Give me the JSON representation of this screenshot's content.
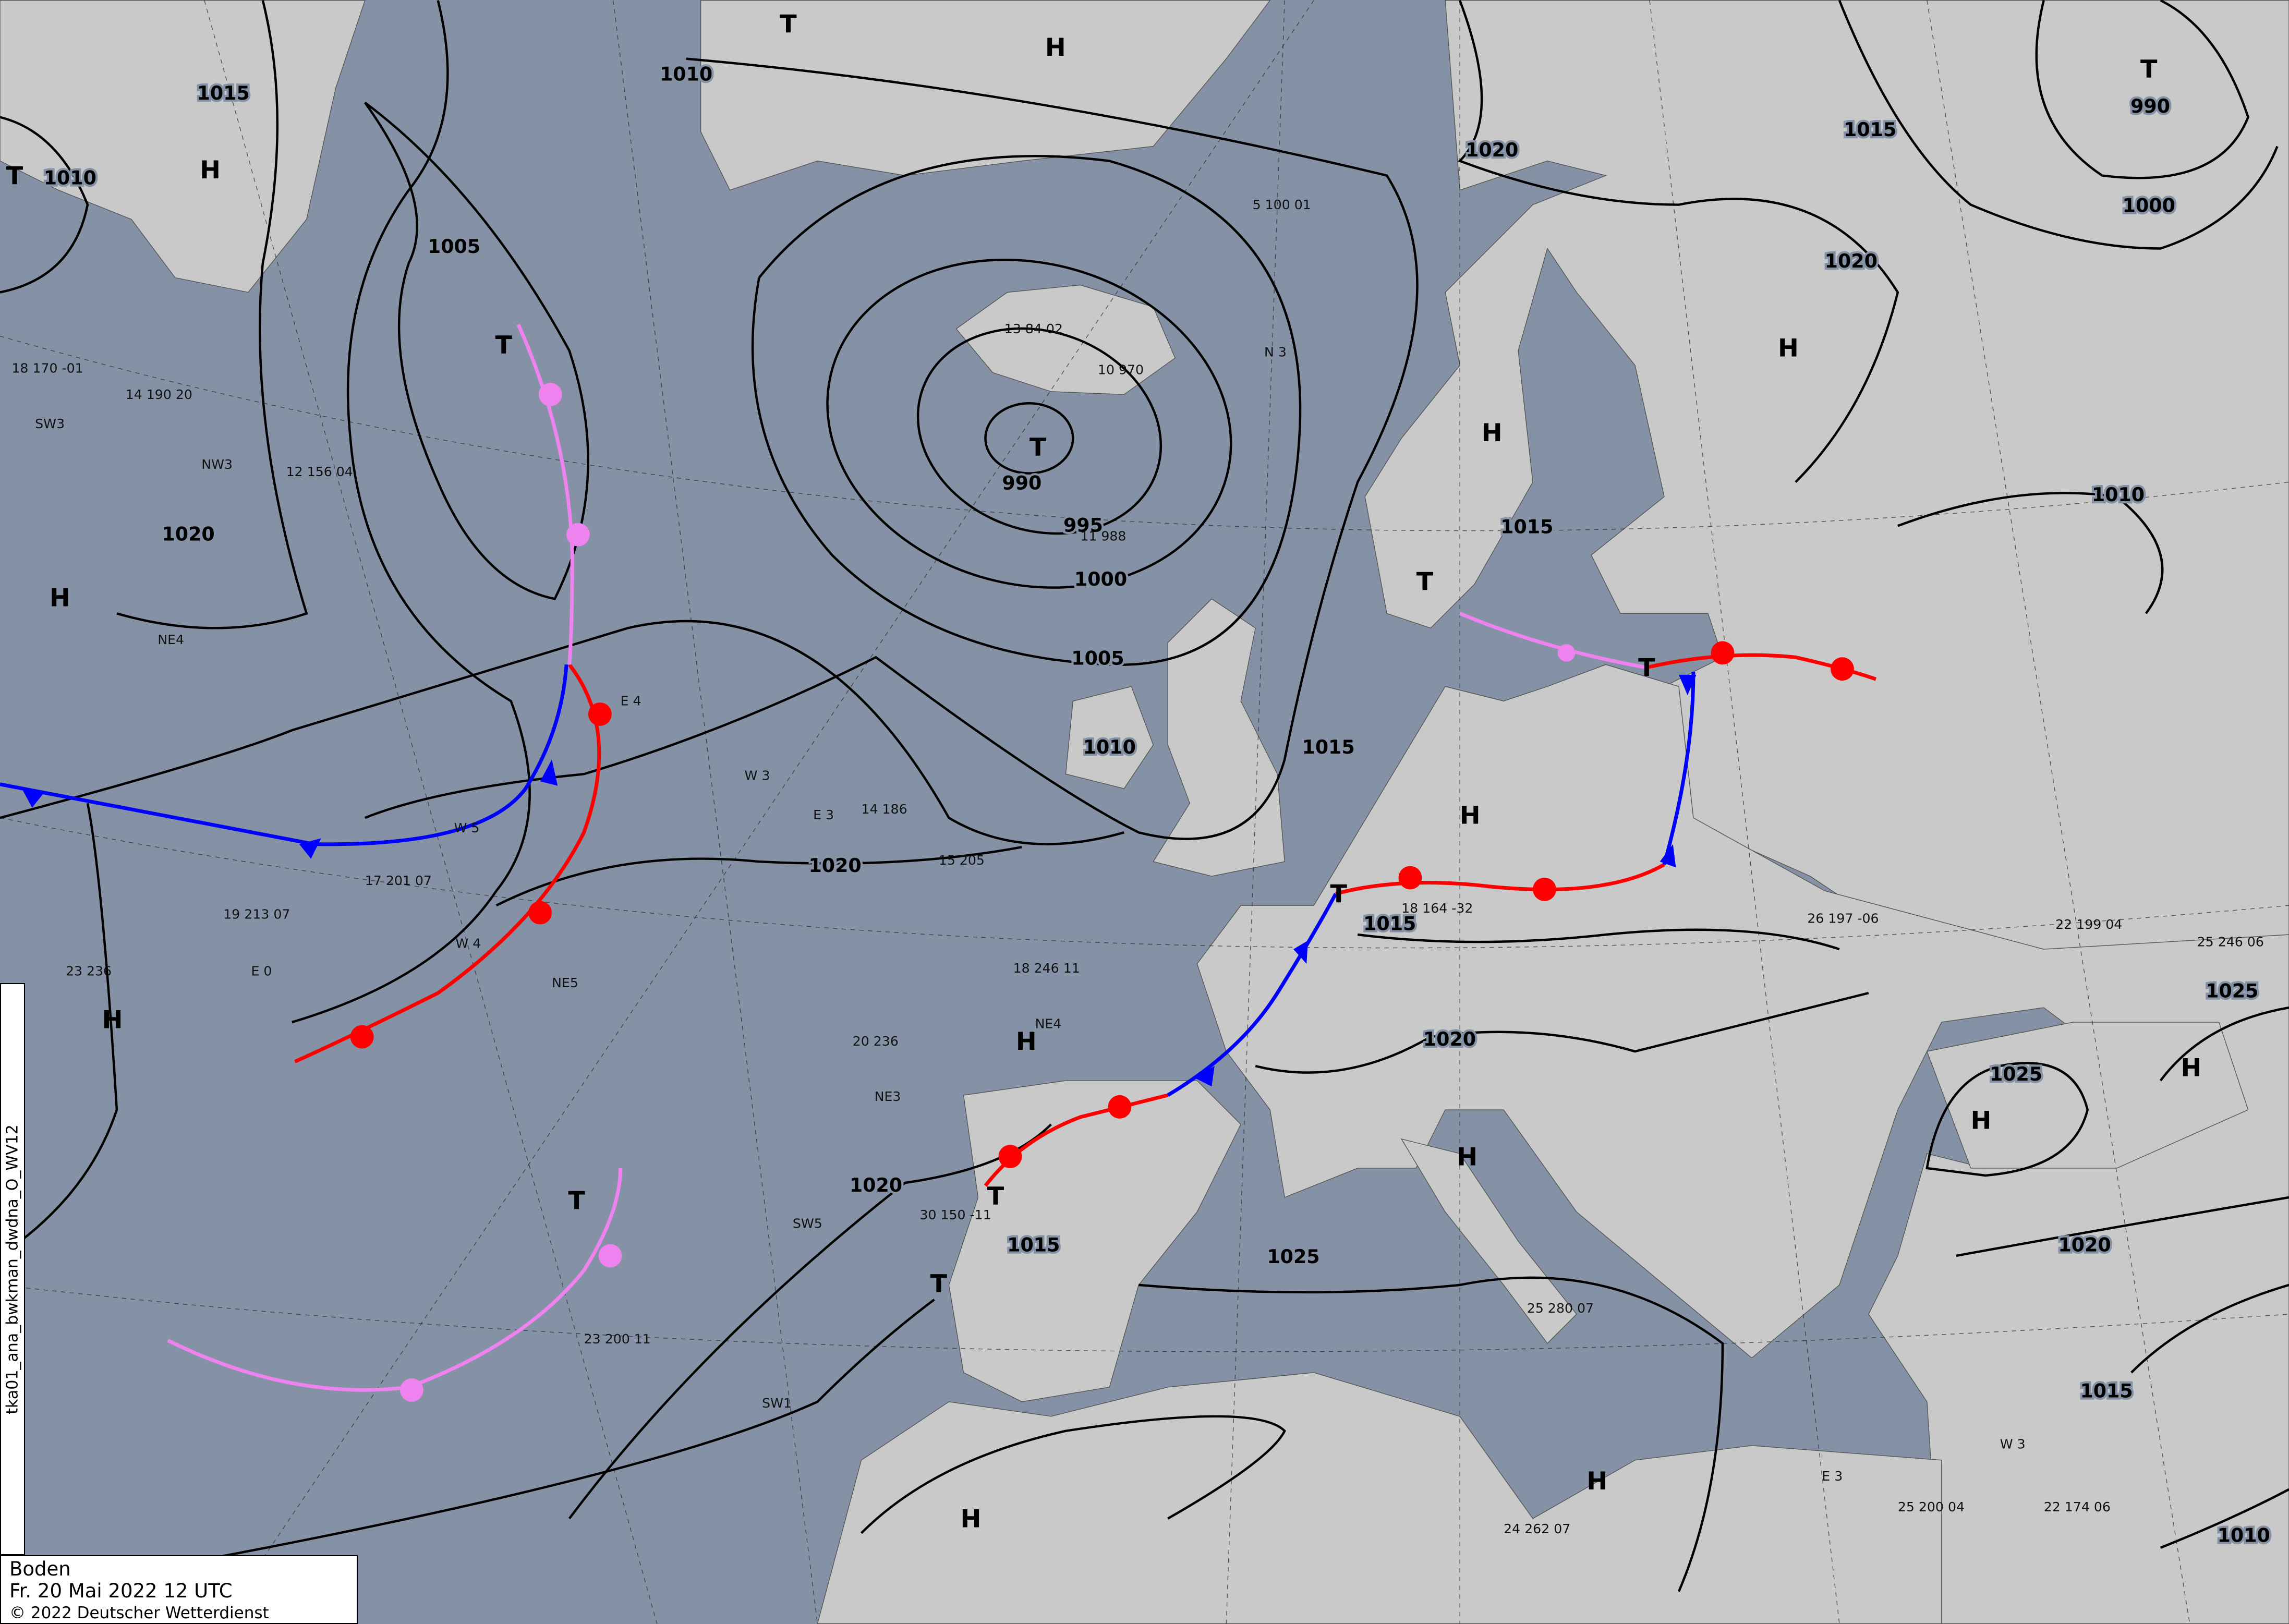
{
  "map": {
    "type": "surface weather analysis",
    "colors": {
      "sea": "#8592a6",
      "land": "#c9c9c9",
      "warm_front": "#ff0000",
      "cold_front": "#0000ff",
      "occlusion": "#ee82ee",
      "isobar": "#000000"
    },
    "isobar_labels": [
      "1015",
      "1010",
      "1005",
      "1020",
      "1010",
      "990",
      "995",
      "1000",
      "1005",
      "1010",
      "1020",
      "1020",
      "1015",
      "1025",
      "1015",
      "1015",
      "1015",
      "1020",
      "1020",
      "1015",
      "1020",
      "1000",
      "990",
      "1010",
      "1025",
      "1025",
      "1020",
      "1015",
      "1010"
    ],
    "pressure_centers": [
      "H",
      "H",
      "H",
      "T",
      "T",
      "H",
      "T",
      "T",
      "T",
      "H",
      "T",
      "T",
      "H",
      "H",
      "T",
      "T",
      "H",
      "H",
      "T",
      "H",
      "H",
      "H",
      "H",
      "T"
    ],
    "stations": [
      "13 84 02",
      "10 970",
      "11 988",
      "5 100 01",
      "14 186",
      "15 205",
      "17 201 07",
      "19 213 07",
      "23 236",
      "14 190 20",
      "12 156 04",
      "18 170 -01",
      "18 246 11",
      "20 236",
      "30 150 -11",
      "23 200 11",
      "25 280 07",
      "24 262 07",
      "18 164 -32",
      "26 197 -06",
      "22 199 04",
      "25 246 06",
      "22 174 06",
      "25 200 04"
    ],
    "wind_labels": [
      "SW3",
      "NW3",
      "NE4",
      "E 4",
      "W 4",
      "W 5",
      "NE5",
      "W 3",
      "E 3",
      "SW5",
      "SW1",
      "NE4",
      "NE3",
      "E 0",
      "N 3",
      "E 3",
      "W 3"
    ]
  },
  "caption": {
    "title": "Boden",
    "datetime": "Fr. 20 Mai 2022 12 UTC",
    "copyright": "© 2022 Deutscher Wetterdienst"
  },
  "product_id": "tka01_ana_bwkman_dwdna_O_WV12"
}
